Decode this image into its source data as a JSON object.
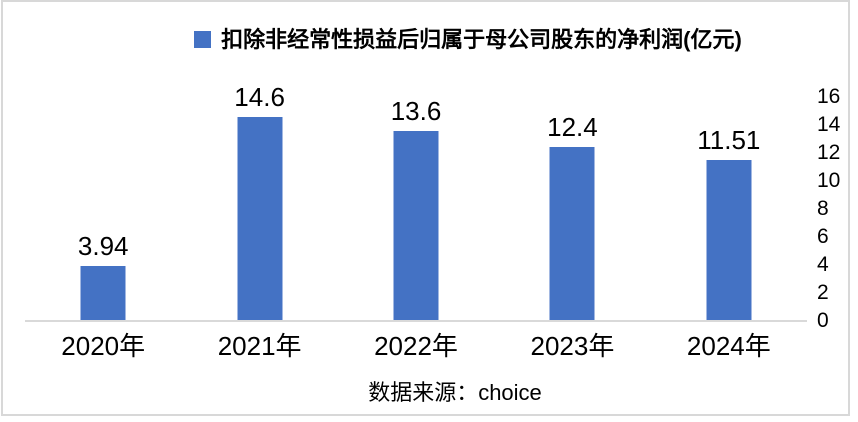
{
  "chart_data": {
    "type": "bar",
    "title": "扣除非经常性损益后归属于母公司股东的净利润(亿元)",
    "categories": [
      "2020年",
      "2021年",
      "2022年",
      "2023年",
      "2024年"
    ],
    "values": [
      3.94,
      14.6,
      13.6,
      12.4,
      11.51
    ],
    "value_labels": [
      "3.94",
      "14.6",
      "13.6",
      "12.4",
      "11.51"
    ],
    "xlabel": "",
    "ylabel": "",
    "ylim": [
      0,
      16
    ],
    "yticks": [
      0,
      2,
      4,
      6,
      8,
      10,
      12,
      14,
      16
    ],
    "yaxis_side": "right",
    "grid": false,
    "legend_position": "top-center",
    "colors": {
      "bar": "#4472C4",
      "axis_line": "#D9D9D9",
      "frame_border": "#D8D8D8",
      "text": "#000000"
    }
  },
  "source_note": {
    "text": "数据来源：choice"
  }
}
